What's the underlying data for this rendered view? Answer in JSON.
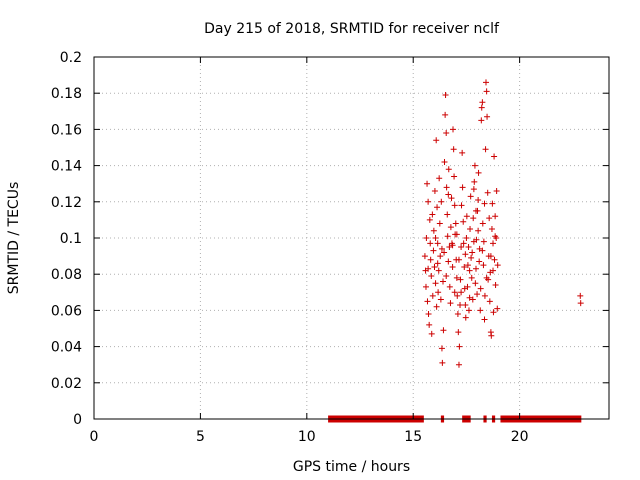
{
  "chart_data": {
    "type": "scatter",
    "title": "Day 215 of 2018, SRMTID for receiver nclf",
    "xlabel": "GPS time / hours",
    "ylabel": "SRMTID / TECUs",
    "xlim": [
      0,
      24.2
    ],
    "ylim": [
      0,
      0.2
    ],
    "x_ticks": [
      "0",
      "5",
      "10",
      "15",
      "20"
    ],
    "y_ticks": [
      "0",
      "0.02",
      "0.04",
      "0.06",
      "0.08",
      "0.1",
      "0.12",
      "0.14",
      "0.16",
      "0.18",
      "0.2"
    ],
    "grid": true,
    "marker": "+",
    "color": "#cc0000",
    "series": [
      {
        "points": [
          [
            15.55,
            0.09
          ],
          [
            15.58,
            0.082
          ],
          [
            15.6,
            0.073
          ],
          [
            15.62,
            0.1
          ],
          [
            15.65,
            0.13
          ],
          [
            15.67,
            0.065
          ],
          [
            15.7,
            0.12
          ],
          [
            15.72,
            0.058
          ],
          [
            15.75,
            0.052
          ],
          [
            15.78,
            0.11
          ],
          [
            15.8,
            0.097
          ],
          [
            15.82,
            0.088
          ],
          [
            15.85,
            0.079
          ],
          [
            15.87,
            0.047
          ],
          [
            15.9,
            0.113
          ],
          [
            15.92,
            0.068
          ],
          [
            15.95,
            0.093
          ],
          [
            15.97,
            0.104
          ],
          [
            16.0,
            0.084
          ],
          [
            16.02,
            0.126
          ],
          [
            16.05,
            0.075
          ],
          [
            16.08,
            0.154
          ],
          [
            16.1,
            0.062
          ],
          [
            16.12,
            0.117
          ],
          [
            16.15,
            0.097
          ],
          [
            16.17,
            0.07
          ],
          [
            16.2,
            0.082
          ],
          [
            16.22,
            0.133
          ],
          [
            16.25,
            0.108
          ],
          [
            16.27,
            0.09
          ],
          [
            16.3,
            0.066
          ],
          [
            16.32,
            0.12
          ],
          [
            16.35,
            0.039
          ],
          [
            16.37,
            0.031
          ],
          [
            16.4,
            0.076
          ],
          [
            16.42,
            0.049
          ],
          [
            16.45,
            0.092
          ],
          [
            16.47,
            0.142
          ],
          [
            16.5,
            0.168
          ],
          [
            16.52,
            0.179
          ],
          [
            16.55,
            0.158
          ],
          [
            16.57,
            0.128
          ],
          [
            16.6,
            0.113
          ],
          [
            16.62,
            0.101
          ],
          [
            16.65,
            0.087
          ],
          [
            16.67,
            0.138
          ],
          [
            16.7,
            0.095
          ],
          [
            16.72,
            0.073
          ],
          [
            16.75,
            0.064
          ],
          [
            16.77,
            0.106
          ],
          [
            16.8,
            0.122
          ],
          [
            16.82,
            0.097
          ],
          [
            16.85,
            0.084
          ],
          [
            16.87,
            0.16
          ],
          [
            16.9,
            0.149
          ],
          [
            16.92,
            0.134
          ],
          [
            16.95,
            0.118
          ],
          [
            16.97,
            0.102
          ],
          [
            17.0,
            0.108
          ],
          [
            17.02,
            0.088
          ],
          [
            17.05,
            0.078
          ],
          [
            17.07,
            0.068
          ],
          [
            17.1,
            0.058
          ],
          [
            17.12,
            0.048
          ],
          [
            17.15,
            0.03
          ],
          [
            17.17,
            0.04
          ],
          [
            17.2,
            0.063
          ],
          [
            17.22,
            0.077
          ],
          [
            17.25,
            0.095
          ],
          [
            17.27,
            0.118
          ],
          [
            17.3,
            0.147
          ],
          [
            17.32,
            0.128
          ],
          [
            17.35,
            0.109
          ],
          [
            17.37,
            0.097
          ],
          [
            17.4,
            0.084
          ],
          [
            17.42,
            0.072
          ],
          [
            17.45,
            0.063
          ],
          [
            17.47,
            0.056
          ],
          [
            17.5,
            0.1
          ],
          [
            17.52,
            0.112
          ],
          [
            17.55,
            0.073
          ],
          [
            17.57,
            0.085
          ],
          [
            17.6,
            0.095
          ],
          [
            17.62,
            0.06
          ],
          [
            17.65,
            0.067
          ],
          [
            17.67,
            0.105
          ],
          [
            17.7,
            0.123
          ],
          [
            17.72,
            0.089
          ],
          [
            17.75,
            0.078
          ],
          [
            17.77,
            0.092
          ],
          [
            17.8,
            0.066
          ],
          [
            17.82,
            0.111
          ],
          [
            17.85,
            0.127
          ],
          [
            17.87,
            0.131
          ],
          [
            17.9,
            0.14
          ],
          [
            17.92,
            0.075
          ],
          [
            17.95,
            0.083
          ],
          [
            17.97,
            0.099
          ],
          [
            18.0,
            0.069
          ],
          [
            18.02,
            0.115
          ],
          [
            18.05,
            0.121
          ],
          [
            18.07,
            0.136
          ],
          [
            18.1,
            0.087
          ],
          [
            18.12,
            0.094
          ],
          [
            18.15,
            0.06
          ],
          [
            18.17,
            0.072
          ],
          [
            18.2,
            0.165
          ],
          [
            18.22,
            0.172
          ],
          [
            18.25,
            0.175
          ],
          [
            18.27,
            0.108
          ],
          [
            18.3,
            0.085
          ],
          [
            18.32,
            0.098
          ],
          [
            18.35,
            0.055
          ],
          [
            18.37,
            0.068
          ],
          [
            18.4,
            0.149
          ],
          [
            18.42,
            0.186
          ],
          [
            18.45,
            0.181
          ],
          [
            18.47,
            0.167
          ],
          [
            18.5,
            0.125
          ],
          [
            18.52,
            0.077
          ],
          [
            18.55,
            0.09
          ],
          [
            18.57,
            0.111
          ],
          [
            18.6,
            0.065
          ],
          [
            18.62,
            0.081
          ],
          [
            18.65,
            0.048
          ],
          [
            18.67,
            0.046
          ],
          [
            18.7,
            0.105
          ],
          [
            18.72,
            0.119
          ],
          [
            18.75,
            0.097
          ],
          [
            18.77,
            0.059
          ],
          [
            18.8,
            0.145
          ],
          [
            18.82,
            0.088
          ],
          [
            18.85,
            0.112
          ],
          [
            18.87,
            0.074
          ],
          [
            18.9,
            0.1
          ],
          [
            18.92,
            0.126
          ],
          [
            18.95,
            0.061
          ],
          [
            18.97,
            0.085
          ],
          [
            16.05,
            0.1
          ],
          [
            16.15,
            0.086
          ],
          [
            16.35,
            0.094
          ],
          [
            16.55,
            0.079
          ],
          [
            16.65,
            0.124
          ],
          [
            16.85,
            0.096
          ],
          [
            17.05,
            0.102
          ],
          [
            17.25,
            0.07
          ],
          [
            17.45,
            0.091
          ],
          [
            17.65,
            0.082
          ],
          [
            17.85,
            0.098
          ],
          [
            18.05,
            0.104
          ],
          [
            18.25,
            0.093
          ],
          [
            18.45,
            0.078
          ],
          [
            18.65,
            0.09
          ],
          [
            18.85,
            0.101
          ],
          [
            15.7,
            0.083
          ],
          [
            16.95,
            0.07
          ],
          [
            17.15,
            0.088
          ],
          [
            17.95,
            0.115
          ],
          [
            18.35,
            0.119
          ],
          [
            18.75,
            0.082
          ],
          [
            22.85,
            0.068
          ],
          [
            22.87,
            0.064
          ]
        ]
      }
    ],
    "zero_line_segments": [
      [
        11.0,
        15.5
      ],
      [
        16.3,
        16.45
      ],
      [
        17.3,
        17.7
      ],
      [
        18.3,
        18.45
      ],
      [
        18.7,
        18.85
      ],
      [
        19.1,
        22.9
      ]
    ]
  }
}
